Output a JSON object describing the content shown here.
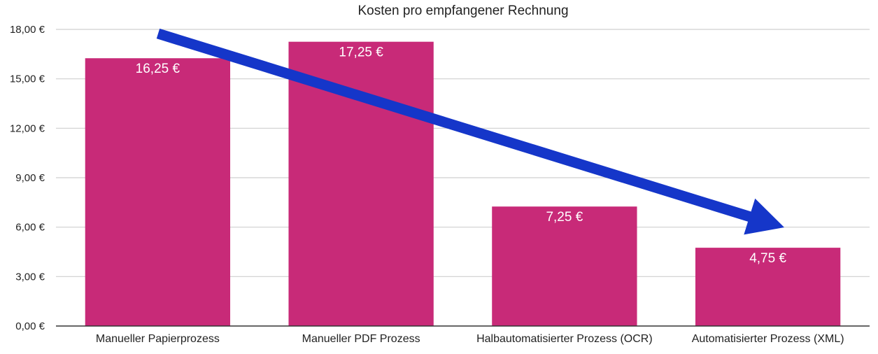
{
  "chart_data": {
    "type": "bar",
    "title": "Kosten pro empfangener Rechnung",
    "categories": [
      "Manueller Papierprozess",
      "Manueller PDF Prozess",
      "Halbautomatisierter Prozess (OCR)",
      "Automatisierter Prozess (XML)"
    ],
    "values": [
      16.25,
      17.25,
      7.25,
      4.75
    ],
    "data_labels": [
      "16,25 €",
      "17,25 €",
      "7,25 €",
      "4,75 €"
    ],
    "y_ticks": [
      {
        "value": 0,
        "label": "0,00 €"
      },
      {
        "value": 3,
        "label": "3,00 €"
      },
      {
        "value": 6,
        "label": "6,00 €"
      },
      {
        "value": 9,
        "label": "9,00 €"
      },
      {
        "value": 12,
        "label": "12,00 €"
      },
      {
        "value": 15,
        "label": "15,00 €"
      },
      {
        "value": 18,
        "label": "18,00 €"
      }
    ],
    "ylim": [
      0,
      18
    ],
    "grid": true,
    "bar_color": "#c82a78",
    "annotation_arrow_color": "#1536c9"
  }
}
